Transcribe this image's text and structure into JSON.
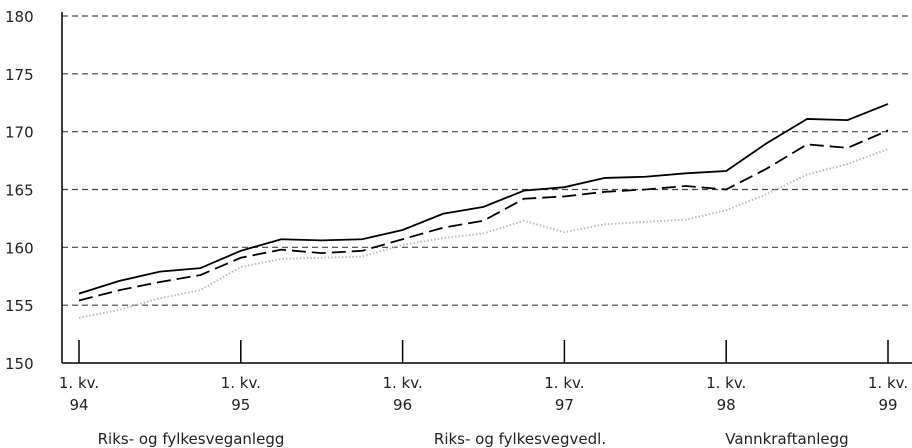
{
  "chart_data": {
    "type": "line",
    "categories": [
      "1. kv.\n94",
      null,
      null,
      null,
      "1. kv.\n95",
      null,
      null,
      null,
      "1. kv.\n96",
      null,
      null,
      null,
      "1. kv.\n97",
      null,
      null,
      null,
      "1. kv.\n98",
      null,
      null,
      null,
      "1. kv.\n99"
    ],
    "series": [
      {
        "name": "Riks- og fylkesveganlegg",
        "color": "#000000",
        "dash": "solid",
        "values": [
          156.0,
          157.1,
          157.9,
          158.2,
          159.7,
          160.7,
          160.6,
          160.7,
          161.5,
          162.9,
          163.5,
          164.9,
          165.2,
          166.0,
          166.1,
          166.4,
          166.6,
          169.0,
          171.1,
          171.0,
          172.4
        ]
      },
      {
        "name": "Riks- og fylkesvegvedl.",
        "color": "#000000",
        "dash": "dashed",
        "values": [
          155.4,
          156.3,
          157.0,
          157.6,
          159.1,
          159.8,
          159.5,
          159.7,
          160.7,
          161.7,
          162.3,
          164.2,
          164.4,
          164.8,
          165.0,
          165.3,
          165.0,
          166.8,
          168.9,
          168.6,
          170.1
        ]
      },
      {
        "name": "Vannkraftanlegg",
        "color": "#bbbbbb",
        "dash": "dotted",
        "values": [
          153.9,
          154.6,
          155.6,
          156.3,
          158.3,
          159.0,
          159.1,
          159.2,
          160.2,
          160.8,
          161.2,
          162.3,
          161.3,
          162.0,
          162.2,
          162.4,
          163.2,
          164.6,
          166.3,
          167.2,
          168.5
        ]
      }
    ],
    "ylim": [
      150,
      180
    ],
    "yticks": [
      150,
      155,
      160,
      165,
      170,
      175,
      180
    ],
    "grid": true
  }
}
